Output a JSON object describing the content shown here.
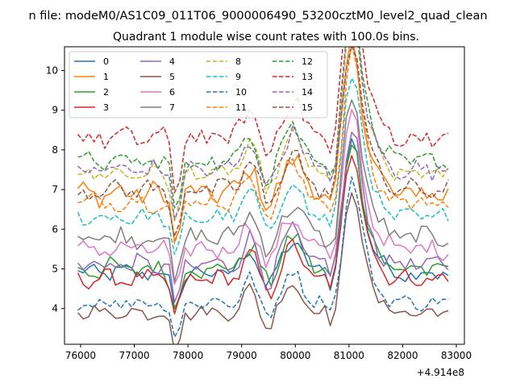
{
  "chart_data": {
    "type": "line",
    "suptitle": "n file: modeM0/AS1C09_011T06_9000006490_53200cztM0_level2_quad_clean",
    "title": "Quadrant 1 module wise count rates with 100.0s bins.",
    "xlabel": "",
    "ylabel": "",
    "x_offset_label": "+4.914e8",
    "xlim": [
      75700,
      83150
    ],
    "ylim": [
      3.1,
      10.6
    ],
    "xticks": [
      76000,
      77000,
      78000,
      79000,
      80000,
      81000,
      82000,
      83000
    ],
    "yticks": [
      4,
      5,
      6,
      7,
      8,
      9,
      10
    ],
    "x_start": 75950,
    "x_end": 82850,
    "x_step": 100,
    "grid": false,
    "legend_position": "upper-left",
    "legend_columns": 4,
    "series": [
      {
        "name": "0",
        "color": "#1f77b4",
        "dash": "solid",
        "base": 4.9,
        "wave": 0.18
      },
      {
        "name": "1",
        "color": "#ff7f0e",
        "dash": "solid",
        "base": 6.9,
        "wave": 0.25
      },
      {
        "name": "2",
        "color": "#2ca02c",
        "dash": "solid",
        "base": 5.0,
        "wave": 0.22
      },
      {
        "name": "3",
        "color": "#d62728",
        "dash": "solid",
        "base": 4.75,
        "wave": 0.18
      },
      {
        "name": "4",
        "color": "#9467bd",
        "dash": "solid",
        "base": 5.1,
        "wave": 0.2
      },
      {
        "name": "5",
        "color": "#8c564b",
        "dash": "solid",
        "base": 3.9,
        "wave": 0.15
      },
      {
        "name": "6",
        "color": "#e377c2",
        "dash": "solid",
        "base": 5.5,
        "wave": 0.2
      },
      {
        "name": "7",
        "color": "#7f7f7f",
        "dash": "solid",
        "base": 5.8,
        "wave": 0.22
      },
      {
        "name": "8",
        "color": "#bcbd22",
        "dash": "dashed",
        "base": 7.4,
        "wave": 0.18
      },
      {
        "name": "9",
        "color": "#17becf",
        "dash": "dashed",
        "base": 6.3,
        "wave": 0.18
      },
      {
        "name": "10",
        "color": "#1f77b4",
        "dash": "dashed",
        "base": 4.15,
        "wave": 0.15
      },
      {
        "name": "11",
        "color": "#ff7f0e",
        "dash": "dashed",
        "base": 6.7,
        "wave": 0.2
      },
      {
        "name": "12",
        "color": "#2ca02c",
        "dash": "dashed",
        "base": 7.7,
        "wave": 0.2
      },
      {
        "name": "13",
        "color": "#d62728",
        "dash": "dashed",
        "base": 8.3,
        "wave": 0.22
      },
      {
        "name": "14",
        "color": "#9467bd",
        "dash": "dashed",
        "base": 7.5,
        "wave": 0.2
      },
      {
        "name": "15",
        "color": "#8c564b",
        "dash": "dashed",
        "base": 7.0,
        "wave": 0.2
      }
    ]
  }
}
